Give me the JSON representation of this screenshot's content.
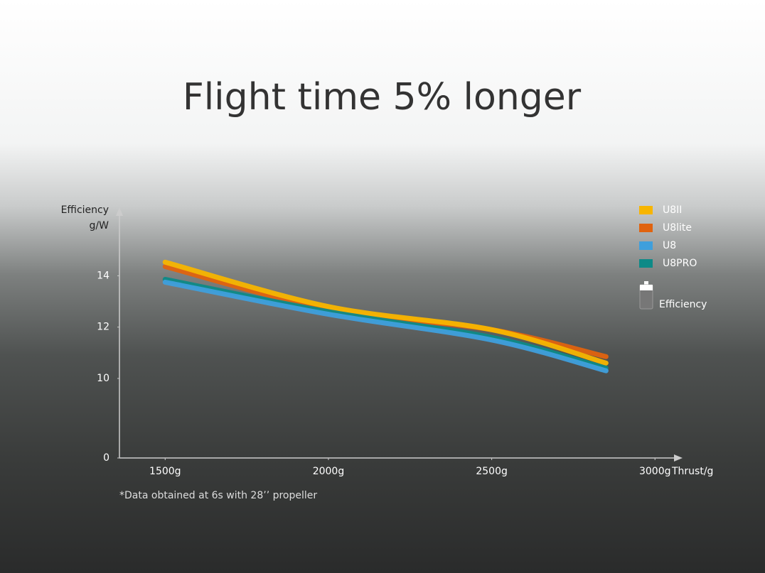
{
  "chart_data": {
    "type": "line",
    "title": "Flight time 5% longer",
    "ylabel": [
      "Efficiency",
      "g/W"
    ],
    "xlabel": "Thrust/g",
    "footnote": "*Data obtained at 6s with 28’’ propeller",
    "battery_label": "Efficiency",
    "x": [
      1500,
      2000,
      2500,
      2850
    ],
    "series": [
      {
        "name": "U8II",
        "color": "#f7b500",
        "values": [
          14.53,
          12.8,
          11.9,
          10.6
        ]
      },
      {
        "name": "U8lite",
        "color": "#e0630f",
        "values": [
          14.36,
          12.7,
          11.9,
          10.85
        ]
      },
      {
        "name": "U8",
        "color": "#3f9fdc",
        "values": [
          13.75,
          12.5,
          11.5,
          10.3
        ]
      },
      {
        "name": "U8PRO",
        "color": "#0d8a87",
        "values": [
          13.86,
          12.6,
          11.6,
          10.4
        ]
      }
    ],
    "xlim": [
      1360,
      3080
    ],
    "xticks": [
      {
        "value": 1500,
        "label": "1500g"
      },
      {
        "value": 2000,
        "label": "2000g"
      },
      {
        "value": 2500,
        "label": "2500g"
      },
      {
        "value": 3000,
        "label": "3000g"
      }
    ],
    "ylim": [
      0,
      16.5
    ],
    "y_break": [
      0,
      10
    ],
    "yticks": [
      0,
      10,
      12,
      14
    ],
    "legend": "top-right"
  }
}
